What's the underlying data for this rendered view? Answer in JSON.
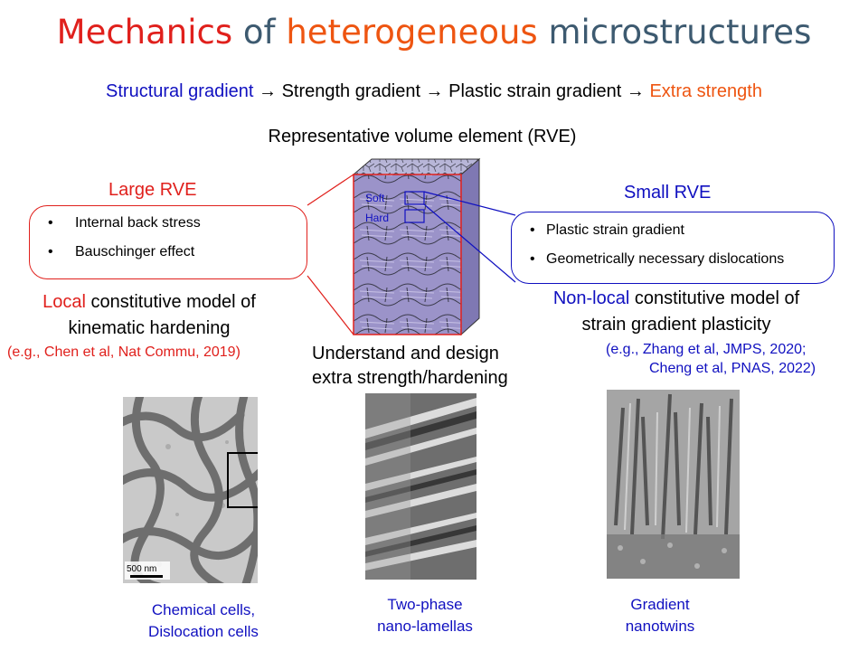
{
  "title": {
    "part1": "Mechanics",
    "part2": " of ",
    "part3": "heterogeneous",
    "part4": " microstructures"
  },
  "subtitle": {
    "structural": "Structural gradient",
    "arrow1": " → Strength gradient → Plastic strain gradient → ",
    "extra": "Extra strength"
  },
  "rve_heading": "Representative volume element (RVE)",
  "large_rve": {
    "title": "Large RVE",
    "bullets": [
      "Internal back stress",
      "Bauschinger effect"
    ],
    "model_colored": "Local",
    "model_rest": " constitutive model of",
    "model_line2": "kinematic hardening",
    "reference": "(e.g., Chen et al, Nat Commu, 2019)"
  },
  "small_rve": {
    "title": "Small RVE",
    "bullets": [
      "Plastic strain gradient",
      "Geometrically necessary dislocations"
    ],
    "model_colored": "Non-local",
    "model_rest": " constitutive model of",
    "model_line2": "strain gradient plasticity",
    "reference_line1": "(e.g., Zhang et al, JMPS, 2020;",
    "reference_line2": "Cheng et al, PNAS, 2022)"
  },
  "cube_labels": {
    "soft": "Soft",
    "hard": "Hard"
  },
  "center_text": {
    "line1": "Understand and design",
    "line2": "extra strength/hardening"
  },
  "images": [
    {
      "scale_bar": "500 nm",
      "caption_line1": "Chemical cells,",
      "caption_line2": "Dislocation cells"
    },
    {
      "caption_line1": "Two-phase",
      "caption_line2": "nano-lamellas"
    },
    {
      "caption_line1": "Gradient",
      "caption_line2": "nanotwins"
    }
  ],
  "colors": {
    "red": "#e0201c",
    "orange": "#ee5511",
    "blue": "#1010c0",
    "slate": "#3d5a70"
  }
}
